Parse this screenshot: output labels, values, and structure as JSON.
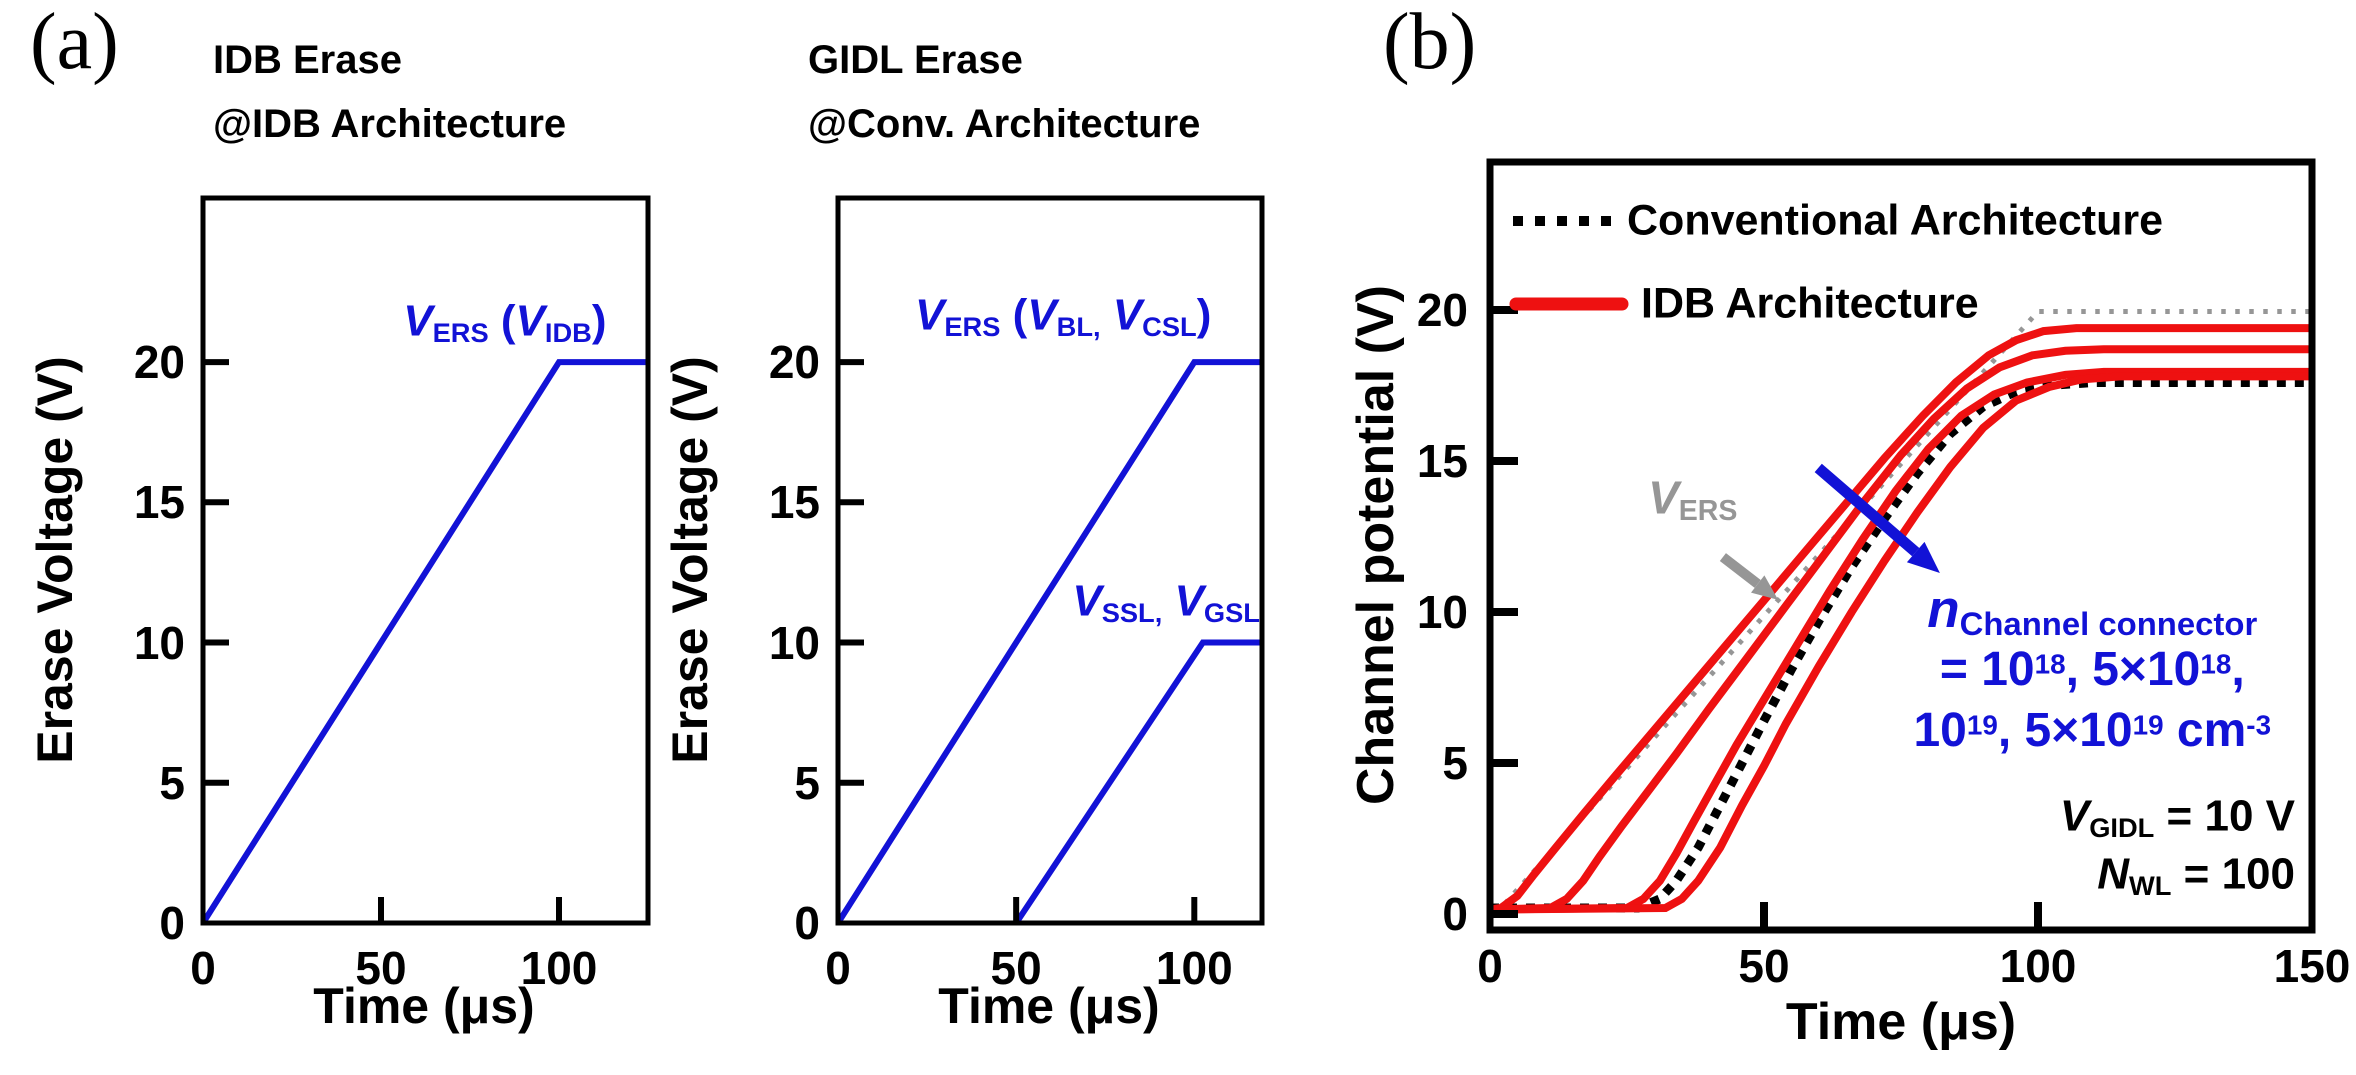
{
  "labels": {
    "panel_a": "(a)",
    "panel_b": "(b)"
  },
  "colors": {
    "blue": "#1212d6",
    "red": "#ee1111",
    "gray": "#969696",
    "black": "#000000"
  },
  "chart_data": [
    {
      "id": "idb_erase",
      "type": "line",
      "title_lines": [
        "IDB Erase",
        "@IDB Architecture"
      ],
      "xlabel": "Time (μs)",
      "ylabel": "Erase Voltage (V)",
      "xlim": [
        0,
        125
      ],
      "ylim": [
        0,
        25.85
      ],
      "xticks": [
        0,
        50,
        100
      ],
      "yticks": [
        0,
        5,
        10,
        15,
        20
      ],
      "grid": false,
      "series": [
        {
          "name": "VERS (VIDB)",
          "color": "blue",
          "style": "solid",
          "width": 6,
          "points": [
            [
              0,
              0
            ],
            [
              100,
              20
            ],
            [
              125,
              20
            ]
          ]
        }
      ],
      "annotations": [
        {
          "id": "vers-vidb-label",
          "cls": "curve-label",
          "color": "blue",
          "x": 84.8,
          "y": 21.4,
          "align": "center",
          "segments": [
            {
              "t": "V",
              "i": true
            },
            {
              "t": "ERS",
              "sub": true
            },
            {
              "t": " ("
            },
            {
              "t": "V",
              "i": true
            },
            {
              "t": "IDB",
              "sub": true
            },
            {
              "t": ")"
            }
          ]
        }
      ]
    },
    {
      "id": "gidl_erase",
      "type": "line",
      "title_lines": [
        "GIDL Erase",
        "@Conv. Architecture"
      ],
      "xlabel": "Time (μs)",
      "ylabel": "Erase Voltage (V)",
      "xlim": [
        0,
        119
      ],
      "ylim": [
        0,
        25.85
      ],
      "xticks": [
        0,
        50,
        100
      ],
      "yticks": [
        0,
        5,
        10,
        15,
        20
      ],
      "grid": false,
      "series": [
        {
          "name": "VERS (VBL, VCSL)",
          "color": "blue",
          "style": "solid",
          "width": 6,
          "points": [
            [
              0,
              0
            ],
            [
              100,
              20
            ],
            [
              119,
              20
            ]
          ]
        },
        {
          "name": "VSSL, VGSL",
          "color": "blue",
          "style": "solid",
          "width": 6,
          "points": [
            [
              50,
              0
            ],
            [
              102.4,
              10
            ],
            [
              119,
              10
            ]
          ]
        }
      ],
      "annotations": [
        {
          "id": "vers-vbl-vcsl-label",
          "cls": "curve-label",
          "color": "blue",
          "x": 63.2,
          "y": 21.6,
          "align": "center",
          "segments": [
            {
              "t": "V",
              "i": true
            },
            {
              "t": "ERS",
              "sub": true
            },
            {
              "t": " ("
            },
            {
              "t": "V",
              "i": true
            },
            {
              "t": "BL,",
              "sub": true
            },
            {
              "t": " "
            },
            {
              "t": "V",
              "i": true
            },
            {
              "t": "CSL",
              "sub": true
            },
            {
              "t": ")"
            }
          ]
        },
        {
          "id": "vssl-vgsl-label",
          "cls": "curve-label",
          "color": "blue",
          "x": 92.1,
          "y": 11.4,
          "align": "center",
          "segments": [
            {
              "t": "V",
              "i": true
            },
            {
              "t": "SSL,",
              "sub": true
            },
            {
              "t": " "
            },
            {
              "t": "V",
              "i": true
            },
            {
              "t": "GSL",
              "sub": true
            }
          ]
        }
      ]
    },
    {
      "id": "channel_potential",
      "type": "line",
      "title_lines": [],
      "xlabel": "Time (μs)",
      "ylabel": "Channel potential (V)",
      "xlim": [
        0,
        150
      ],
      "ylim": [
        -0.53,
        24.9
      ],
      "xticks": [
        0,
        50,
        100,
        150
      ],
      "yticks": [
        0,
        5,
        10,
        15,
        20
      ],
      "grid": false,
      "legend": {
        "position": "top-left-inside",
        "entries": [
          {
            "label": "Conventional Architecture",
            "color": "black",
            "style": "dotted"
          },
          {
            "label": "IDB Architecture",
            "color": "red",
            "style": "solid"
          }
        ]
      },
      "params_shown": {
        "V_GIDL": "10 V",
        "N_WL": "100",
        "n_channel_connector_cm-3": [
          "1e18",
          "5e18",
          "1e19",
          "5e19"
        ]
      },
      "series": [
        {
          "name": "VERS ramp",
          "color": "gray",
          "style": "dotted",
          "width": 5,
          "points": [
            [
              1,
              0
            ],
            [
              100,
              19.95
            ],
            [
              150,
              19.95
            ]
          ]
        },
        {
          "name": "Conventional Architecture",
          "color": "black",
          "style": "dotted",
          "width": 9,
          "points": [
            [
              0,
              0.2
            ],
            [
              27,
              0.2
            ],
            [
              31,
              0.5
            ],
            [
              34,
              1.1
            ],
            [
              38,
              2.2
            ],
            [
              42,
              3.6
            ],
            [
              46,
              5
            ],
            [
              50,
              6.4
            ],
            [
              55,
              8.1
            ],
            [
              60,
              9.7
            ],
            [
              66,
              11.5
            ],
            [
              72,
              13.1
            ],
            [
              78,
              14.6
            ],
            [
              84,
              15.9
            ],
            [
              90,
              16.8
            ],
            [
              96,
              17.3
            ],
            [
              102,
              17.5
            ],
            [
              110,
              17.6
            ],
            [
              150,
              17.6
            ]
          ]
        },
        {
          "name": "IDB Architecture 1",
          "color": "red",
          "style": "solid",
          "width": 8,
          "points": [
            [
              0,
              0.15
            ],
            [
              2,
              0.2
            ],
            [
              5,
              0.6
            ],
            [
              8,
              1.3
            ],
            [
              12,
              2.2
            ],
            [
              17,
              3.3
            ],
            [
              23,
              4.6
            ],
            [
              30,
              6.1
            ],
            [
              37,
              7.6
            ],
            [
              44,
              9.1
            ],
            [
              51,
              10.6
            ],
            [
              58,
              12.1
            ],
            [
              65,
              13.6
            ],
            [
              72,
              15.1
            ],
            [
              79,
              16.5
            ],
            [
              85,
              17.6
            ],
            [
              91,
              18.5
            ],
            [
              96,
              19
            ],
            [
              101,
              19.3
            ],
            [
              107,
              19.4
            ],
            [
              150,
              19.4
            ]
          ]
        },
        {
          "name": "IDB Architecture 2",
          "color": "red",
          "style": "solid",
          "width": 8,
          "points": [
            [
              0,
              0.15
            ],
            [
              11,
              0.2
            ],
            [
              14,
              0.5
            ],
            [
              17,
              1.1
            ],
            [
              20,
              1.9
            ],
            [
              24,
              2.9
            ],
            [
              29,
              4.1
            ],
            [
              34,
              5.3
            ],
            [
              40,
              6.8
            ],
            [
              47,
              8.5
            ],
            [
              54,
              10.2
            ],
            [
              61,
              11.9
            ],
            [
              68,
              13.6
            ],
            [
              75,
              15.2
            ],
            [
              81,
              16.4
            ],
            [
              87,
              17.4
            ],
            [
              93,
              18.1
            ],
            [
              99,
              18.5
            ],
            [
              105,
              18.65
            ],
            [
              112,
              18.7
            ],
            [
              150,
              18.7
            ]
          ]
        },
        {
          "name": "IDB Architecture 3",
          "color": "red",
          "style": "solid",
          "width": 8,
          "points": [
            [
              0,
              0.15
            ],
            [
              25,
              0.2
            ],
            [
              28,
              0.5
            ],
            [
              31,
              1.1
            ],
            [
              34,
              2
            ],
            [
              37,
              3
            ],
            [
              41,
              4.3
            ],
            [
              45,
              5.6
            ],
            [
              50,
              7.1
            ],
            [
              56,
              8.9
            ],
            [
              62,
              10.7
            ],
            [
              68,
              12.4
            ],
            [
              74,
              14
            ],
            [
              80,
              15.4
            ],
            [
              86,
              16.5
            ],
            [
              92,
              17.2
            ],
            [
              98,
              17.6
            ],
            [
              105,
              17.85
            ],
            [
              112,
              17.95
            ],
            [
              150,
              17.95
            ]
          ]
        },
        {
          "name": "IDB Architecture 4",
          "color": "red",
          "style": "solid",
          "width": 8,
          "points": [
            [
              0,
              0.15
            ],
            [
              32,
              0.2
            ],
            [
              35,
              0.5
            ],
            [
              38,
              1.1
            ],
            [
              42,
              2.2
            ],
            [
              46,
              3.6
            ],
            [
              50,
              4.9
            ],
            [
              54,
              6.3
            ],
            [
              60,
              8.2
            ],
            [
              66,
              10
            ],
            [
              72,
              11.7
            ],
            [
              78,
              13.3
            ],
            [
              84,
              14.8
            ],
            [
              90,
              16.1
            ],
            [
              96,
              17
            ],
            [
              102,
              17.45
            ],
            [
              108,
              17.7
            ],
            [
              115,
              17.8
            ],
            [
              150,
              17.8
            ]
          ]
        }
      ],
      "arrows": [
        {
          "id": "vers-gray-arrow",
          "color": "gray",
          "from": [
            42.5,
            11.82
          ],
          "to": [
            52.6,
            10.4
          ],
          "width": 10,
          "head": 26
        },
        {
          "id": "n-increase-blue-arrow",
          "color": "blue",
          "from": [
            59.9,
            14.77
          ],
          "to": [
            82.1,
            11.29
          ],
          "width": 11,
          "head": 32
        }
      ],
      "annotations": [
        {
          "id": "vers-gray-label",
          "cls": "b-curve-label",
          "color": "gray",
          "x": 37.0,
          "y": 13.7,
          "align": "center",
          "segments": [
            {
              "t": "V",
              "i": true
            },
            {
              "t": "ERS",
              "sub": true
            }
          ]
        },
        {
          "id": "n-channel-connector-line1",
          "cls": "blue-head",
          "color": "blue",
          "x": 109.9,
          "y": 10.0,
          "align": "center",
          "segments": [
            {
              "t": "n",
              "i": true
            },
            {
              "t": "Channel connector",
              "sub": true
            }
          ]
        },
        {
          "id": "n-channel-connector-line2",
          "cls": "blue-line",
          "color": "blue",
          "x": 109.9,
          "y": 8.08,
          "align": "center",
          "segments": [
            {
              "t": "= 10"
            },
            {
              "t": "18",
              "sup": true
            },
            {
              "t": ", 5×10"
            },
            {
              "t": "18",
              "sup": true
            },
            {
              "t": ","
            }
          ]
        },
        {
          "id": "n-channel-connector-line3",
          "cls": "blue-line",
          "color": "blue",
          "x": 109.9,
          "y": 6.06,
          "align": "center",
          "segments": [
            {
              "t": "10"
            },
            {
              "t": "19",
              "sup": true
            },
            {
              "t": ", 5×10"
            },
            {
              "t": "19",
              "sup": true
            },
            {
              "t": " cm"
            },
            {
              "t": "-3",
              "sup": true
            }
          ]
        },
        {
          "id": "vgidl-param-label",
          "cls": "param",
          "color": "black",
          "x": 146.9,
          "y": 3.18,
          "align": "right",
          "segments": [
            {
              "t": "V",
              "i": true
            },
            {
              "t": "GIDL",
              "sub": true
            },
            {
              "t": " = 10 V"
            }
          ]
        },
        {
          "id": "nwl-param-label",
          "cls": "param",
          "color": "black",
          "x": 146.9,
          "y": 1.26,
          "align": "right",
          "segments": [
            {
              "t": "N",
              "i": true
            },
            {
              "t": "WL",
              "sub": true
            },
            {
              "t": " = 100"
            }
          ]
        }
      ]
    }
  ]
}
